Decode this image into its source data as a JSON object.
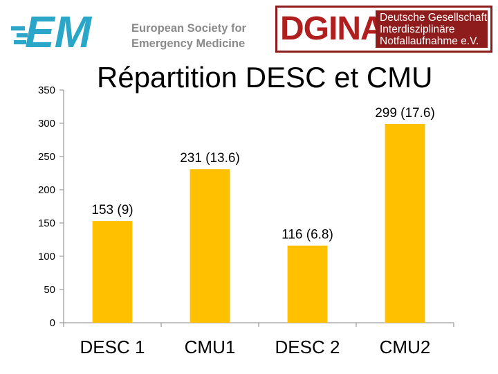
{
  "logos": {
    "eusem": {
      "mark": "EM",
      "line1": "European Society for",
      "line2": "Emergency Medicine",
      "mark_color": "#2aa6c9",
      "text_color": "#8a8a8a"
    },
    "dgina": {
      "mark": "DGINA",
      "line1": "Deutsche Gesellschaft",
      "line2": "Interdisziplinäre",
      "line3": "Notfallaufnahme e.V.",
      "mark_color": "#b01e1e",
      "box_color": "#8e1c1c"
    }
  },
  "chart_data": {
    "type": "bar",
    "title": "Répartition DESC et CMU",
    "categories": [
      "DESC 1",
      "CMU1",
      "DESC 2",
      "CMU2"
    ],
    "values": [
      153,
      231,
      116,
      299
    ],
    "data_labels": [
      "153 (9)",
      "231 (13.6)",
      "116 (6.8)",
      "299 (17.6)"
    ],
    "ylim": [
      0,
      350
    ],
    "yticks": [
      0,
      50,
      100,
      150,
      200,
      250,
      300,
      350
    ],
    "bar_color": "#ffc000",
    "grid": false,
    "legend": "none"
  }
}
